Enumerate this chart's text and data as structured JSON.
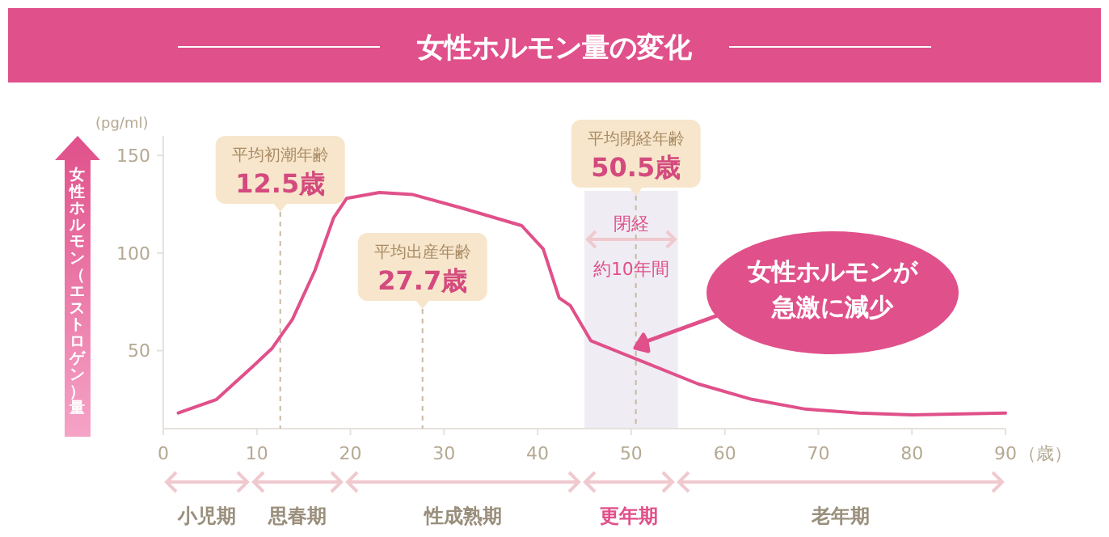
{
  "chart_data": {
    "type": "line",
    "title": "女性ホルモン量の変化",
    "ylabel": "女性ホルモン（エストロゲン）量",
    "xlabel": "（歳）",
    "x": [
      1.6,
      5.7,
      9.6,
      11.6,
      13.8,
      16.2,
      18.2,
      19.6,
      23.1,
      26.6,
      31.9,
      38.3,
      40.6,
      42.3,
      43.5,
      45.7,
      51.4,
      57.1,
      62.9,
      68.6,
      74.3,
      80,
      90
    ],
    "series": [
      {
        "color": "#e0508a",
        "values": [
          18,
          25,
          42,
          51,
          66,
          91,
          118,
          128,
          131,
          130,
          123,
          114,
          102,
          77,
          73,
          55,
          44,
          33,
          25,
          20,
          18,
          17,
          18
        ]
      }
    ],
    "xlim": [
      0,
      90
    ],
    "ylim": [
      10,
      160
    ],
    "xticks": [
      0,
      10,
      20,
      30,
      40,
      50,
      60,
      70,
      80,
      90
    ],
    "yticks": [
      50,
      100,
      150
    ],
    "grid": false,
    "marker": "none",
    "line_style": "solid",
    "ref_lines": [
      {
        "axis": "x",
        "value": 12.5,
        "label": "平均初潮年齢\n12.5歳",
        "color": "#c9b9a6",
        "line_style": "dashed"
      },
      {
        "axis": "x",
        "value": 27.7,
        "label": "平均出産年齢\n27.7歳",
        "color": "#c9b9a6",
        "line_style": "dashed"
      },
      {
        "axis": "x",
        "value": 50.5,
        "label": "平均閉経年齢\n50.5歳",
        "color": "#c9b9a6",
        "line_style": "dashed"
      }
    ],
    "bands": [
      {
        "axis": "x",
        "from": 45,
        "to": 55,
        "label": "閉経",
        "color": "#efedf3"
      }
    ],
    "annotations": [
      "(pg/ml)",
      "約10年間",
      "女性ホルモンが急激に減少",
      "小児期",
      "思春期",
      "性成熟期",
      "更年期",
      "老年期"
    ]
  }
}
